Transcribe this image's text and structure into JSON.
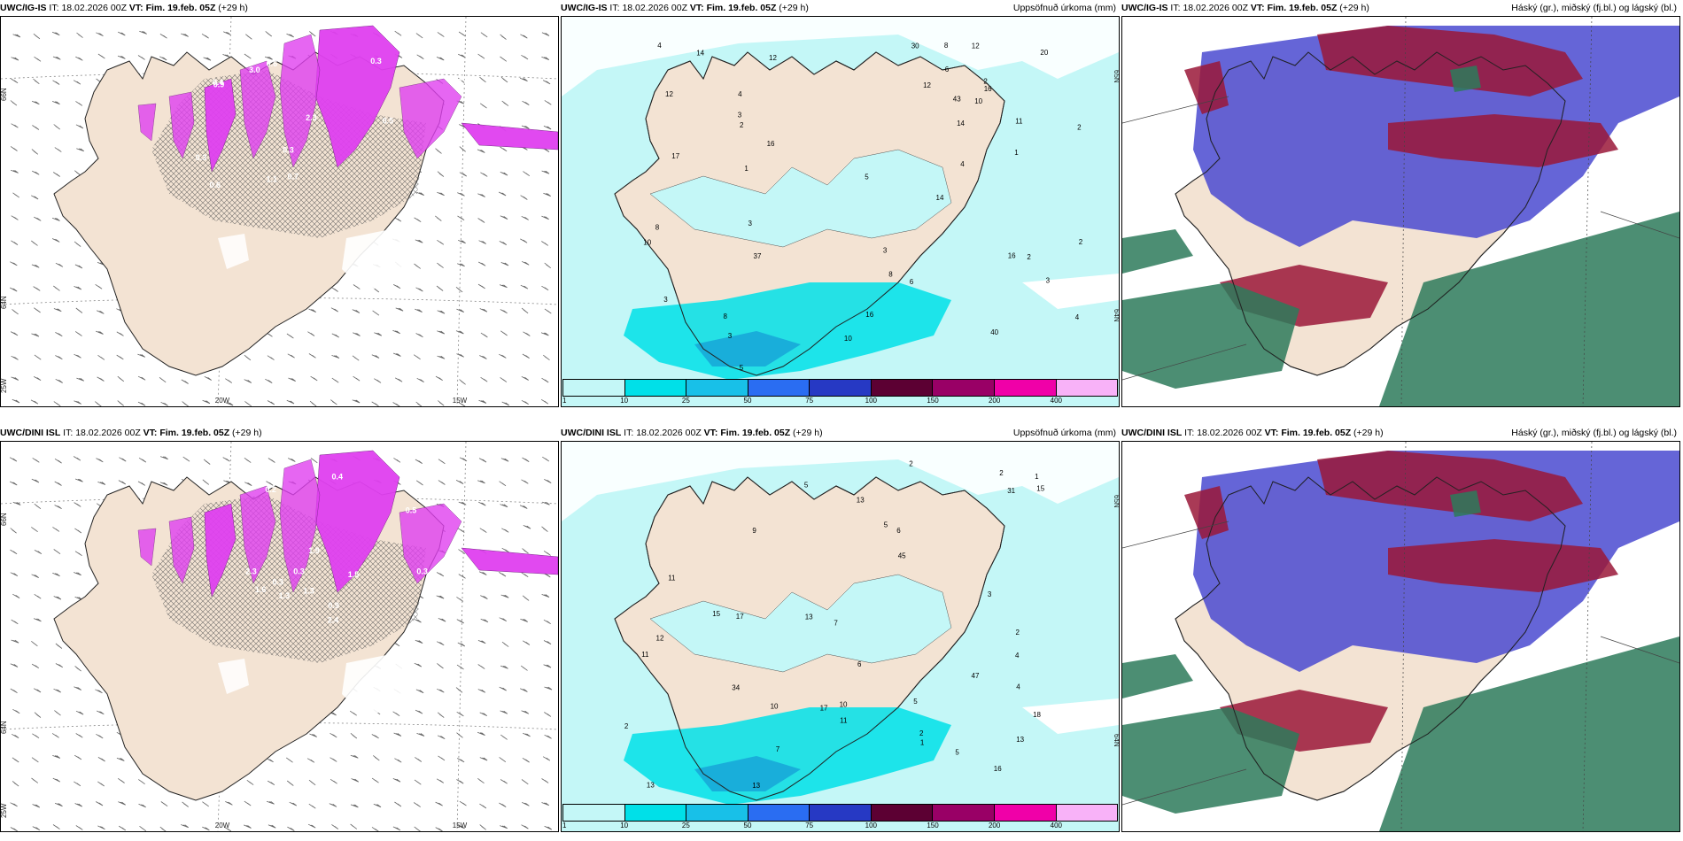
{
  "panels": [
    {
      "model": "UWC/IG-IS",
      "it_label": "IT:",
      "it_value": "18.02.2026 00Z",
      "vt_label": "VT:",
      "vt_value": "Fim. 19.feb. 05Z",
      "lead": "(+29 h)",
      "right_title": "",
      "type": "precip-type",
      "axis_left": [
        "66N",
        "64N",
        "25W"
      ],
      "axis_bottom": [
        "20W",
        "15W"
      ],
      "values": [
        "3.0",
        "1.9",
        "2.3",
        "1.2",
        "0.3",
        "0.9",
        "0.5",
        "1.1",
        "0.3",
        "1.4",
        "0.8",
        "0.6",
        "0.4",
        "2.0",
        "0.7",
        "0.3",
        "0.6"
      ]
    },
    {
      "model": "UWC/IG-IS",
      "it_label": "IT:",
      "it_value": "18.02.2026 00Z",
      "vt_label": "VT:",
      "vt_value": "Fim. 19.feb. 05Z",
      "lead": "(+29 h)",
      "right_title": "Uppsöfnuð úrkoma (mm)",
      "type": "accum-precip",
      "axis_left": [],
      "axis_right": [
        "65N",
        "64N"
      ],
      "values": [
        "3",
        "4",
        "4",
        "5",
        "3",
        "3",
        "3",
        "2",
        "12",
        "16",
        "16",
        "16",
        "10",
        "17",
        "8",
        "10",
        "14",
        "14",
        "8",
        "12",
        "8",
        "6",
        "3",
        "2",
        "2",
        "1",
        "2",
        "2",
        "4",
        "12",
        "14",
        "30",
        "40",
        "20",
        "37",
        "43",
        "16",
        "10",
        "11",
        "12",
        "3",
        "5",
        "1",
        "8",
        "4",
        "6"
      ],
      "colorbar": {
        "ticks": [
          "1",
          "10",
          "25",
          "50",
          "75",
          "100",
          "150",
          "200",
          "400"
        ],
        "colors": [
          "#c4f7f7",
          "#00e0e8",
          "#18c0e8",
          "#2a6df2",
          "#2639c4",
          "#5c0033",
          "#990066",
          "#f000a8",
          "#f8b2f8"
        ]
      }
    },
    {
      "model": "UWC/IG-IS",
      "it_label": "IT:",
      "it_value": "18.02.2026 00Z",
      "vt_label": "VT:",
      "vt_value": "Fim. 19.feb. 05Z",
      "lead": "(+29 h)",
      "right_title": "Háský (gr.), miðský (fj.bl.) og lágský (bl.)",
      "type": "cloud-cover"
    },
    {
      "model": "UWC/DINI ISL",
      "it_label": "IT:",
      "it_value": "18.02.2026 00Z",
      "vt_label": "VT:",
      "vt_value": "Fim. 19.feb. 05Z",
      "lead": "(+29 h)",
      "right_title": "",
      "type": "precip-type",
      "axis_left": [
        "66N",
        "64N",
        "25W"
      ],
      "axis_bottom": [
        "20W",
        "15W"
      ],
      "values": [
        "0.3",
        "0.2",
        "2.3",
        "1.9",
        "1.5",
        "0.9",
        "1.3",
        "1.3",
        "0.5",
        "0.9",
        "1.6",
        "0.6",
        "1.2",
        "2.4",
        "0.8",
        "0.3",
        "0.3",
        "0.6",
        "0.4"
      ]
    },
    {
      "model": "UWC/DINI ISL",
      "it_label": "IT:",
      "it_value": "18.02.2026 00Z",
      "vt_label": "VT:",
      "vt_value": "Fim. 19.feb. 05Z",
      "lead": "(+29 h)",
      "right_title": "Uppsöfnuð úrkoma (mm)",
      "type": "accum-precip",
      "axis_left": [],
      "axis_right": [
        "65N",
        "64N"
      ],
      "values": [
        "5",
        "2",
        "2",
        "4",
        "1",
        "13",
        "13",
        "12",
        "17",
        "11",
        "9",
        "15",
        "10",
        "6",
        "5",
        "18",
        "7",
        "3",
        "2",
        "2",
        "1",
        "2",
        "7",
        "15",
        "13",
        "13",
        "13",
        "11",
        "10",
        "16",
        "11",
        "34",
        "47",
        "31",
        "45",
        "17",
        "6",
        "5",
        "5",
        "4"
      ],
      "colorbar": {
        "ticks": [
          "1",
          "10",
          "25",
          "50",
          "75",
          "100",
          "150",
          "200",
          "400"
        ],
        "colors": [
          "#c4f7f7",
          "#00e0e8",
          "#18c0e8",
          "#2a6df2",
          "#2639c4",
          "#5c0033",
          "#990066",
          "#f000a8",
          "#f8b2f8"
        ]
      }
    },
    {
      "model": "UWC/DINI ISL",
      "it_label": "IT:",
      "it_value": "18.02.2026 00Z",
      "vt_label": "VT:",
      "vt_value": "Fim. 19.feb. 05Z",
      "lead": "(+29 h)",
      "right_title": "Háský (gr.), miðský (fj.bl.) og lágský (bl.)",
      "type": "cloud-cover"
    }
  ],
  "colors": {
    "land": "#f3e3d3",
    "precip_light": "#c4f7f7",
    "precip_med": "#00e0e8",
    "snow_magenta": "#e040f0",
    "high_cloud": "#2d7a5a",
    "mid_cloud": "#9a1838",
    "low_cloud": "#4a4ad0"
  }
}
